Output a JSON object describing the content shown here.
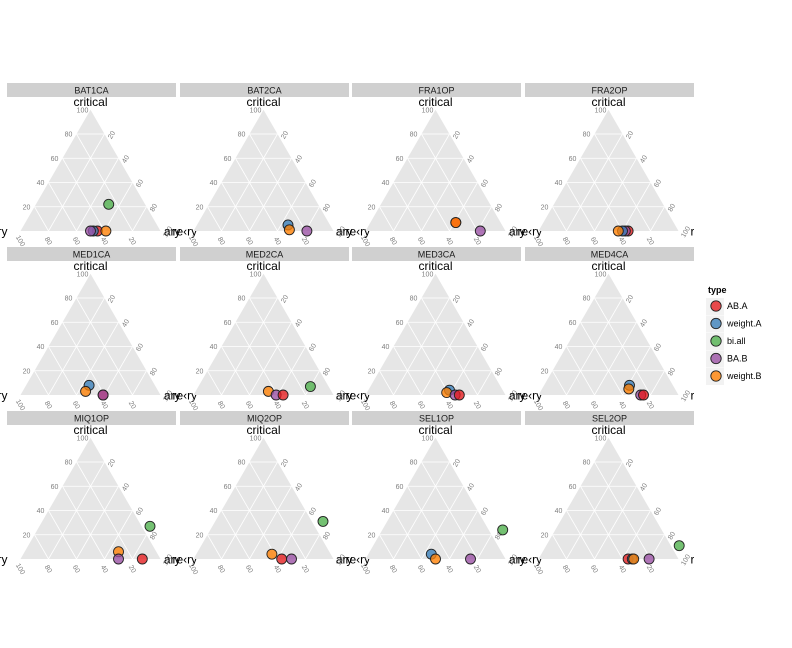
{
  "chart_data": {
    "type": "scatter",
    "subtype": "ternary",
    "apex_labels": {
      "top": "critical",
      "left": "ary",
      "right": "re‹ry"
    },
    "ticks": [
      "20",
      "40",
      "60",
      "80",
      "100"
    ],
    "legend": {
      "title": "type",
      "position": "right"
    },
    "series": [
      {
        "name": "AB.A",
        "color": "#E41A1C"
      },
      {
        "name": "weight.A",
        "color": "#377EB8"
      },
      {
        "name": "bi.all",
        "color": "#4DAF4A"
      },
      {
        "name": "BA.B",
        "color": "#984EA3"
      },
      {
        "name": "weight.B",
        "color": "#FF7F00"
      }
    ],
    "panels": [
      {
        "title": "BAT1CA",
        "points": [
          {
            "series": "AB.A",
            "c": 0,
            "r": 55
          },
          {
            "series": "weight.A",
            "c": 0,
            "r": 52
          },
          {
            "series": "BA.B",
            "c": 0,
            "r": 50
          },
          {
            "series": "bi.all",
            "c": 22,
            "r": 52
          },
          {
            "series": "weight.B",
            "c": 0,
            "r": 61
          }
        ]
      },
      {
        "title": "BAT2CA",
        "points": [
          {
            "series": "weight.A",
            "c": 5,
            "r": 65
          },
          {
            "series": "weight.B",
            "c": 1,
            "r": 68
          },
          {
            "series": "BA.B",
            "c": 0,
            "r": 81
          }
        ]
      },
      {
        "title": "FRA1OP",
        "points": [
          {
            "series": "AB.A",
            "c": 7,
            "r": 61
          },
          {
            "series": "weight.B",
            "c": 7,
            "r": 61
          },
          {
            "series": "BA.B",
            "c": 0,
            "r": 82
          }
        ]
      },
      {
        "title": "FRA2OP",
        "points": [
          {
            "series": "AB.A",
            "c": 0,
            "r": 64
          },
          {
            "series": "BA.B",
            "c": 0,
            "r": 62
          },
          {
            "series": "weight.A",
            "c": 0,
            "r": 60
          },
          {
            "series": "weight.B",
            "c": 0,
            "r": 57
          }
        ]
      },
      {
        "title": "MED1CA",
        "points": [
          {
            "series": "weight.A",
            "c": 8,
            "r": 45
          },
          {
            "series": "weight.B",
            "c": 3,
            "r": 45
          },
          {
            "series": "AB.A",
            "c": 0,
            "r": 59
          },
          {
            "series": "BA.B",
            "c": 0,
            "r": 59
          }
        ]
      },
      {
        "title": "MED2CA",
        "points": [
          {
            "series": "bi.all",
            "c": 7,
            "r": 80
          },
          {
            "series": "weight.B",
            "c": 3,
            "r": 52
          },
          {
            "series": "BA.B",
            "c": 0,
            "r": 59
          },
          {
            "series": "AB.A",
            "c": 0,
            "r": 64
          }
        ]
      },
      {
        "title": "MED3CA",
        "points": [
          {
            "series": "weight.A",
            "c": 4,
            "r": 58
          },
          {
            "series": "weight.B",
            "c": 2,
            "r": 57
          },
          {
            "series": "BA.B",
            "c": 0,
            "r": 64
          },
          {
            "series": "AB.A",
            "c": 0,
            "r": 67
          }
        ]
      },
      {
        "title": "MED4CA",
        "points": [
          {
            "series": "weight.A",
            "c": 8,
            "r": 61
          },
          {
            "series": "weight.B",
            "c": 5,
            "r": 62
          },
          {
            "series": "BA.B",
            "c": 0,
            "r": 73
          },
          {
            "series": "AB.A",
            "c": 0,
            "r": 75
          }
        ]
      },
      {
        "title": "MIQ1OP",
        "points": [
          {
            "series": "bi.all",
            "c": 27,
            "r": 79
          },
          {
            "series": "weight.B",
            "c": 6,
            "r": 67
          },
          {
            "series": "BA.B",
            "c": 0,
            "r": 70
          },
          {
            "series": "AB.A",
            "c": 0,
            "r": 87
          }
        ]
      },
      {
        "title": "MIQ2OP",
        "points": [
          {
            "series": "bi.all",
            "c": 31,
            "r": 77
          },
          {
            "series": "weight.B",
            "c": 4,
            "r": 54
          },
          {
            "series": "AB.A",
            "c": 0,
            "r": 63
          },
          {
            "series": "BA.B",
            "c": 0,
            "r": 70
          }
        ]
      },
      {
        "title": "SEL1OP",
        "points": [
          {
            "series": "bi.all",
            "c": 24,
            "r": 86
          },
          {
            "series": "weight.A",
            "c": 4,
            "r": 45
          },
          {
            "series": "weight.B",
            "c": 0,
            "r": 50
          },
          {
            "series": "BA.B",
            "c": 0,
            "r": 75
          }
        ]
      },
      {
        "title": "SEL2OP",
        "points": [
          {
            "series": "bi.all",
            "c": 11,
            "r": 95
          },
          {
            "series": "BA.B",
            "c": 0,
            "r": 79
          },
          {
            "series": "AB.A",
            "c": 0,
            "r": 64
          },
          {
            "series": "weight.A",
            "c": 0,
            "r": 67
          },
          {
            "series": "weight.B",
            "c": 0,
            "r": 68
          }
        ]
      }
    ]
  }
}
